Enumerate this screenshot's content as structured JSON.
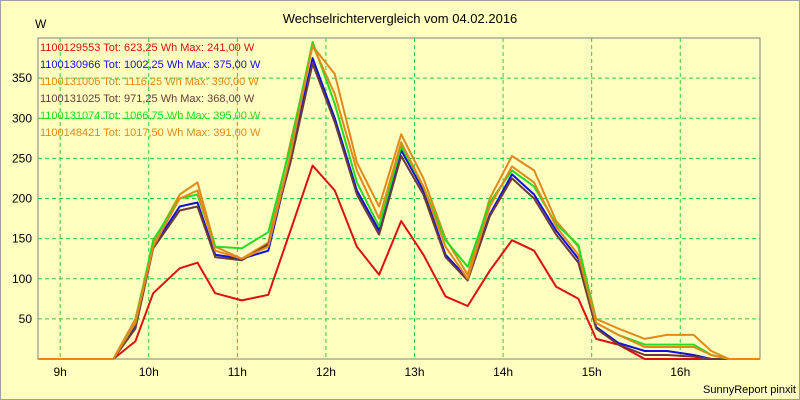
{
  "chart_data": {
    "type": "line",
    "title": "Wechselrichtervergleich vom 04.02.2016",
    "ylabel": "W",
    "xlabel": "",
    "credit": "SunnyReport pinxit",
    "xlim": [
      8.75,
      16.9
    ],
    "ylim": [
      0,
      400
    ],
    "grid": true,
    "legend_position": "top-left",
    "yticks": [
      50,
      100,
      150,
      200,
      250,
      300,
      350
    ],
    "ytick_labels": [
      "50",
      "100",
      "150",
      "200",
      "250",
      "300",
      "350"
    ],
    "xticks": [
      9,
      10,
      11,
      12,
      13,
      14,
      15,
      16
    ],
    "xtick_labels": [
      "9h",
      "10h",
      "11h",
      "12h",
      "13h",
      "14h",
      "15h",
      "16h"
    ],
    "x": [
      8.75,
      9.0,
      9.25,
      9.5,
      9.6,
      9.85,
      10.05,
      10.35,
      10.55,
      10.75,
      11.05,
      11.35,
      11.6,
      11.85,
      12.1,
      12.35,
      12.6,
      12.85,
      13.1,
      13.35,
      13.6,
      13.85,
      14.1,
      14.35,
      14.6,
      14.85,
      15.05,
      15.3,
      15.6,
      15.85,
      16.15,
      16.35,
      16.55,
      16.9
    ],
    "series": [
      {
        "name": "1100129553",
        "label": "1100129553 Tot: 623,25 Wh Max: 241,00 W",
        "color": "#dd1010",
        "values": [
          0,
          0,
          0,
          0,
          0,
          22,
          82,
          113,
          120,
          82,
          73,
          80,
          160,
          241,
          210,
          140,
          105,
          172,
          130,
          78,
          66,
          110,
          148,
          135,
          90,
          75,
          25,
          18,
          0,
          0,
          0,
          0,
          0,
          0
        ]
      },
      {
        "name": "1100130966",
        "label": "1100130966 Tot: 1002,25 Wh Max: 375,00 W",
        "color": "#1010dd",
        "values": [
          0,
          0,
          0,
          0,
          0,
          40,
          140,
          190,
          195,
          130,
          125,
          135,
          250,
          375,
          300,
          210,
          160,
          260,
          210,
          130,
          100,
          180,
          230,
          205,
          160,
          125,
          40,
          20,
          10,
          10,
          5,
          0,
          0,
          0
        ]
      },
      {
        "name": "1100131006",
        "label": "1100131006 Tot: 1116,25 Wh Max: 390,00 W",
        "color": "#e08a1a",
        "values": [
          0,
          0,
          0,
          0,
          0,
          50,
          145,
          205,
          220,
          140,
          125,
          145,
          270,
          390,
          355,
          245,
          190,
          280,
          225,
          150,
          105,
          200,
          253,
          235,
          172,
          140,
          50,
          38,
          25,
          30,
          30,
          10,
          0,
          0
        ]
      },
      {
        "name": "1100131025",
        "label": "1100131025 Tot: 971,25 Wh Max: 368,00 W",
        "color": "#6a3a3a",
        "values": [
          0,
          0,
          0,
          0,
          0,
          38,
          138,
          185,
          190,
          127,
          123,
          143,
          245,
          368,
          295,
          205,
          155,
          253,
          205,
          127,
          98,
          178,
          225,
          200,
          155,
          120,
          38,
          18,
          5,
          5,
          3,
          0,
          0,
          0
        ]
      },
      {
        "name": "1100131074",
        "label": "1100131074 Tot: 1066,75 Wh Max: 395,00 W",
        "color": "#22dd22",
        "values": [
          0,
          0,
          0,
          0,
          0,
          45,
          148,
          200,
          205,
          140,
          138,
          158,
          265,
          395,
          318,
          220,
          165,
          265,
          215,
          148,
          115,
          195,
          235,
          215,
          168,
          142,
          45,
          30,
          18,
          18,
          18,
          5,
          0,
          0
        ]
      },
      {
        "name": "1100148421",
        "label": "1100148421 Tot: 1017,50 Wh Max: 391,00 W",
        "color": "#e08a1a",
        "values": [
          0,
          0,
          0,
          0,
          0,
          45,
          140,
          200,
          210,
          135,
          125,
          140,
          255,
          391,
          330,
          235,
          175,
          270,
          215,
          140,
          100,
          190,
          240,
          220,
          165,
          130,
          45,
          30,
          15,
          15,
          15,
          5,
          0,
          0
        ]
      }
    ]
  }
}
